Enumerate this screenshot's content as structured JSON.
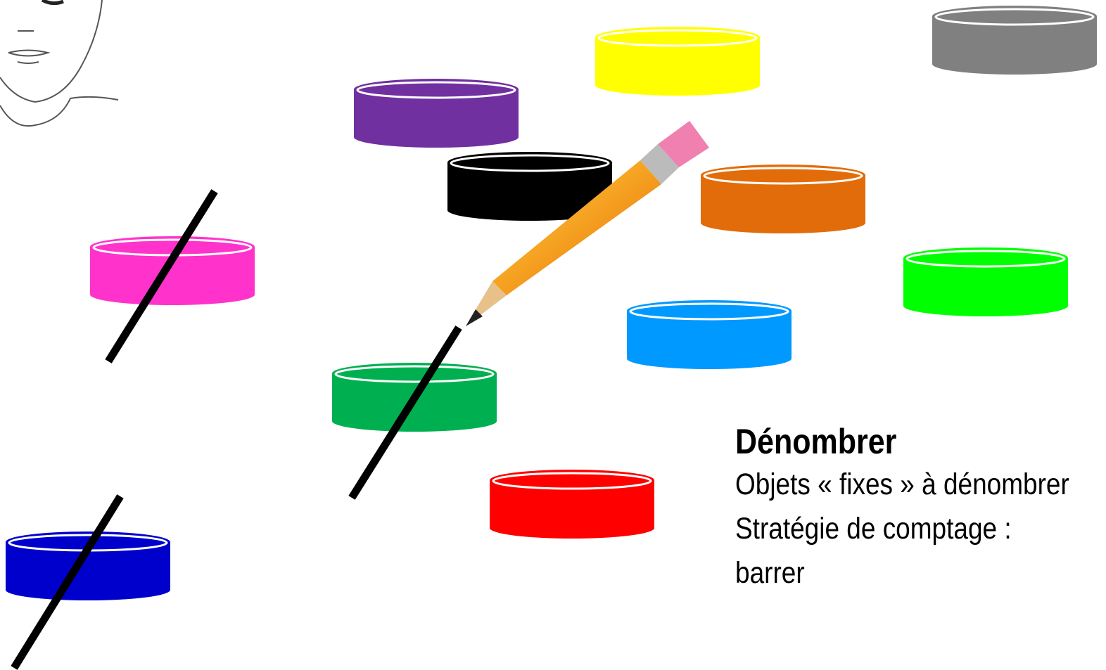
{
  "title": "Dénombrer",
  "lines": [
    "Objets « fixes » à dénombrer",
    "Stratégie de comptage :",
    "barrer"
  ]
}
